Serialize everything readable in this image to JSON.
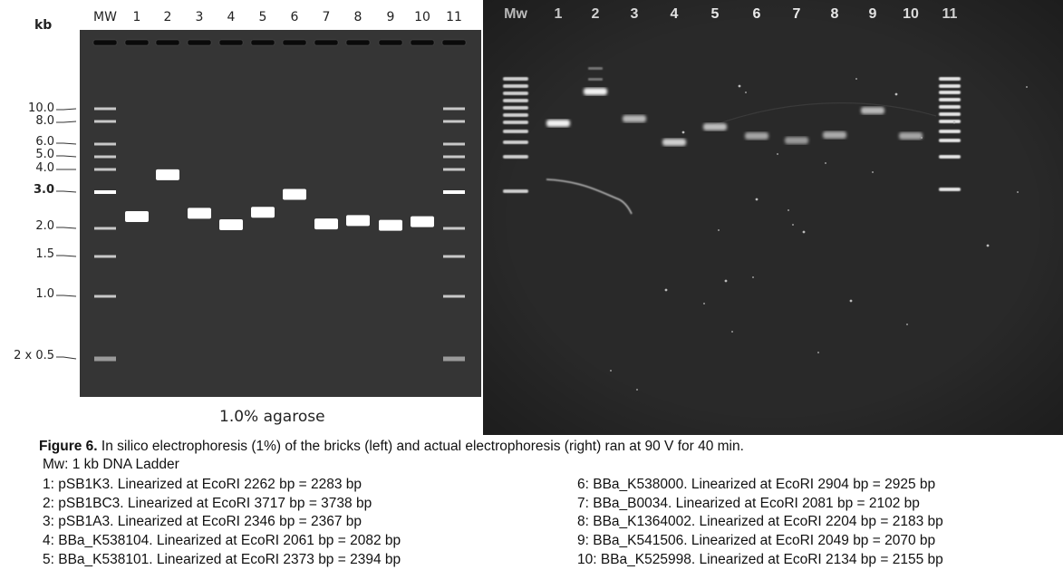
{
  "left_panel": {
    "unit_label": "kb",
    "lane_labels": [
      "MW",
      "1",
      "2",
      "3",
      "4",
      "5",
      "6",
      "7",
      "8",
      "9",
      "10",
      "11"
    ],
    "marker_labels": [
      "10.0",
      "8.0",
      "6.0",
      "5.0",
      "4.0",
      "3.0",
      "2.0",
      "1.5",
      "1.0",
      "2 x 0.5"
    ],
    "gel_caption": "1.0% agarose"
  },
  "right_panel": {
    "lane_labels": [
      "Mw",
      "1",
      "2",
      "3",
      "4",
      "5",
      "6",
      "7",
      "8",
      "9",
      "10",
      "11"
    ]
  },
  "chart_data": {
    "type": "gel_electrophoresis",
    "title": "In silico electrophoresis (1%) — 1 kb DNA Ladder",
    "axis_label": "kb",
    "ladder_kb": [
      10.0,
      8.0,
      6.0,
      5.0,
      4.0,
      3.0,
      2.0,
      1.5,
      1.0,
      0.5
    ],
    "lanes": [
      {
        "lane": "1",
        "size_bp": 2283
      },
      {
        "lane": "2",
        "size_bp": 3738
      },
      {
        "lane": "3",
        "size_bp": 2367
      },
      {
        "lane": "4",
        "size_bp": 2082
      },
      {
        "lane": "5",
        "size_bp": 2394
      },
      {
        "lane": "6",
        "size_bp": 2925
      },
      {
        "lane": "7",
        "size_bp": 2102
      },
      {
        "lane": "8",
        "size_bp": 2183
      },
      {
        "lane": "9",
        "size_bp": 2070
      },
      {
        "lane": "10",
        "size_bp": 2155
      }
    ]
  },
  "caption": {
    "figure_label": "Figure 6.",
    "text": " In silico electrophoresis (1%) of the bricks (left) and actual electrophoresis (right) ran at 90 V for 40 min.",
    "mw_line": "Mw: 1 kb DNA Ladder",
    "items_left": [
      "1: pSB1K3. Linearized at EcoRI 2262 bp = 2283 bp",
      "2: pSB1BC3. Linearized at EcoRI 3717 bp = 3738 bp",
      "3: pSB1A3. Linearized at EcoRI 2346 bp = 2367 bp",
      "4: BBa_K538104. Linearized at EcoRI 2061 bp = 2082 bp",
      "5: BBa_K538101. Linearized at EcoRI 2373 bp = 2394 bp"
    ],
    "items_right": [
      "6: BBa_K538000. Linearized at EcoRI 2904 bp = 2925 bp",
      "7: BBa_B0034. Linearized at EcoRI 2081 bp = 2102 bp",
      "8: BBa_K1364002. Linearized at EcoRI 2204 bp = 2183 bp",
      "9: BBa_K541506. Linearized at EcoRI 2049 bp = 2070 bp",
      "10: BBa_K525998. Linearized at EcoRI 2134 bp = 2155 bp"
    ]
  }
}
